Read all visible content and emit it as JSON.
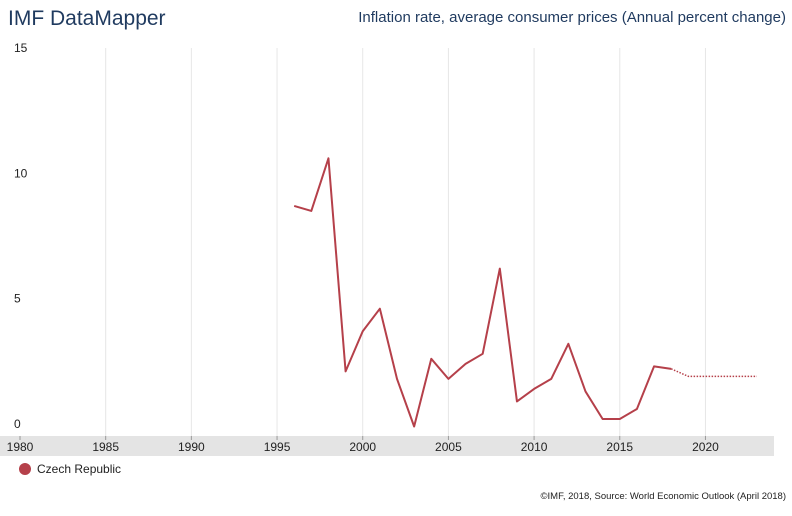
{
  "header": {
    "brand": "IMF DataMapper",
    "title": "Inflation rate, average consumer prices (Annual percent change)"
  },
  "legend": {
    "items": [
      {
        "label": "Czech Republic",
        "color": "#b5404a"
      }
    ]
  },
  "source": "©IMF, 2018, Source: World Economic Outlook (April 2018)",
  "chart_data": {
    "type": "line",
    "title": "Inflation rate, average consumer prices (Annual percent change)",
    "xlabel": "",
    "ylabel": "",
    "xlim": [
      1980,
      2024
    ],
    "ylim": [
      0,
      15
    ],
    "x_ticks": [
      1980,
      1985,
      1990,
      1995,
      2000,
      2005,
      2010,
      2015,
      2020
    ],
    "y_ticks": [
      0,
      5,
      10,
      15
    ],
    "grid": "vertical",
    "legend_position": "bottom-left",
    "series": [
      {
        "name": "Czech Republic",
        "color": "#b5404a",
        "style": "solid",
        "x": [
          1996,
          1997,
          1998,
          1999,
          2000,
          2001,
          2002,
          2003,
          2004,
          2005,
          2006,
          2007,
          2008,
          2009,
          2010,
          2011,
          2012,
          2013,
          2014,
          2015,
          2016,
          2017,
          2018
        ],
        "y": [
          8.7,
          8.5,
          10.6,
          2.1,
          3.7,
          4.6,
          1.8,
          -0.1,
          2.6,
          1.8,
          2.4,
          2.8,
          6.2,
          0.9,
          1.4,
          1.8,
          3.2,
          1.3,
          0.2,
          0.2,
          0.6,
          2.3,
          2.2
        ]
      },
      {
        "name": "Czech Republic",
        "color": "#b5404a",
        "style": "dotted",
        "x": [
          2018,
          2019,
          2020,
          2021,
          2022,
          2023
        ],
        "y": [
          2.2,
          1.9,
          1.9,
          1.9,
          1.9,
          1.9
        ]
      }
    ]
  }
}
